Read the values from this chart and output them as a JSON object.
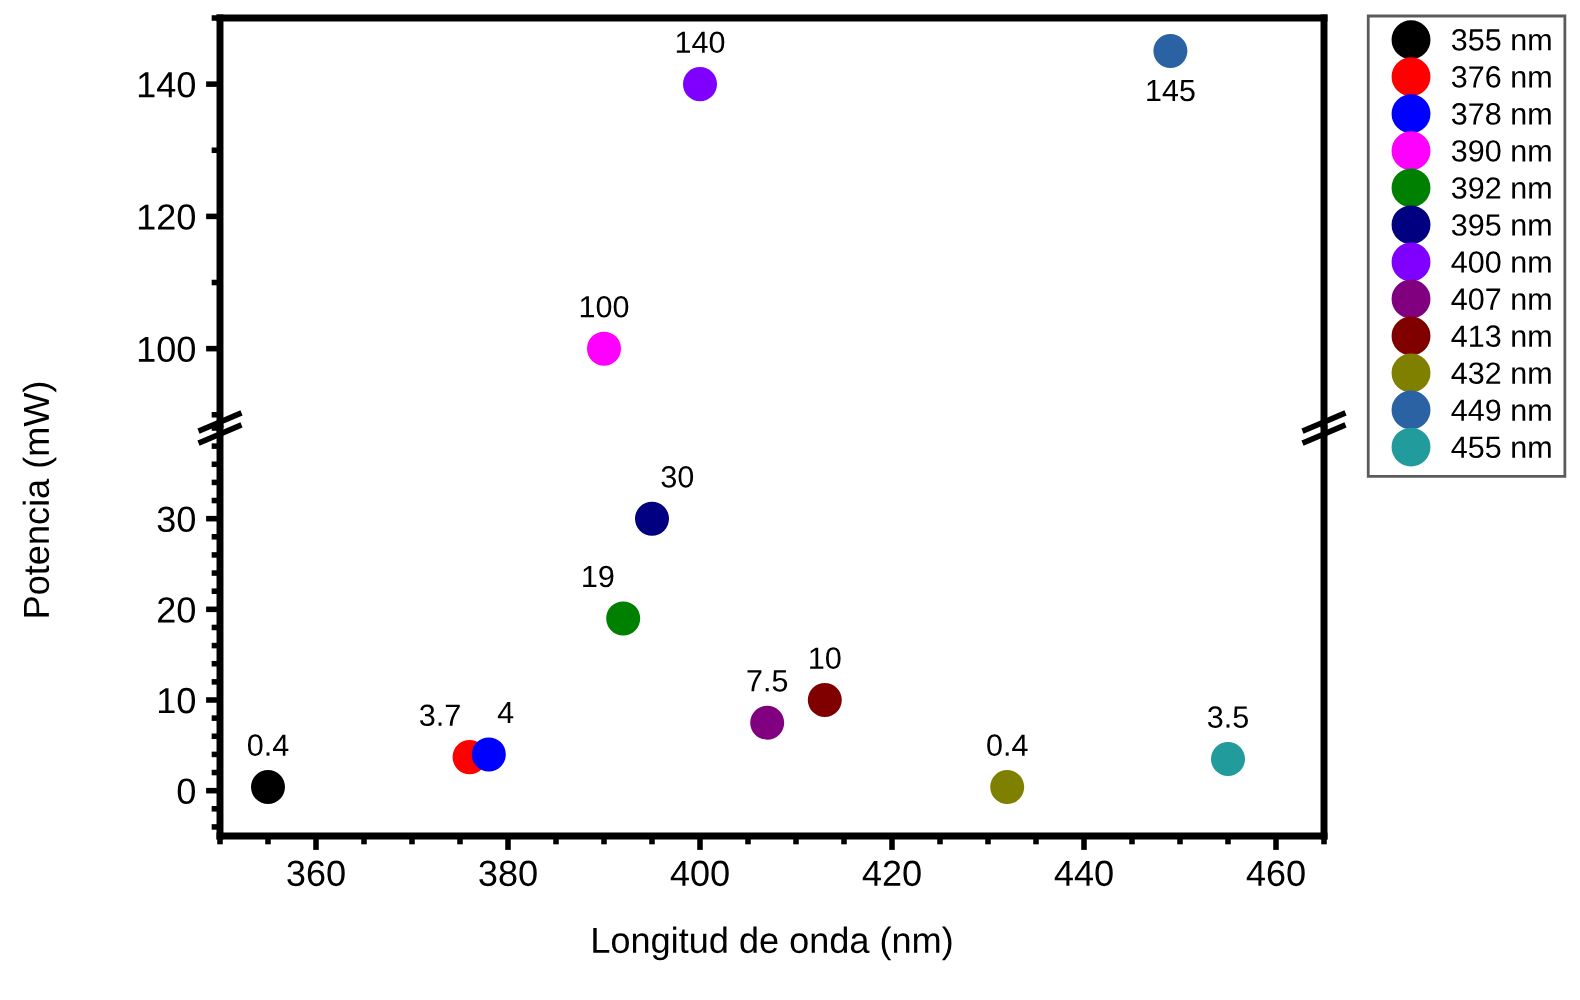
{
  "chart_data": [
    {
      "type": "scatter",
      "ylabel": "Potencia (mW)",
      "xlim": [
        350,
        465
      ],
      "ylim": [
        88,
        150
      ],
      "yticks": [
        100,
        120,
        140
      ],
      "tick_labels": "y",
      "marker": "circle",
      "data_labels": true,
      "legend": "right",
      "grid": false,
      "series": [
        {
          "name": "390 nm",
          "color": "#ff00ff",
          "x": [
            390
          ],
          "values": [
            100
          ]
        },
        {
          "name": "400 nm",
          "color": "#8000ff",
          "x": [
            400
          ],
          "values": [
            140
          ]
        },
        {
          "name": "449 nm",
          "color": "#2b62a3",
          "x": [
            449
          ],
          "values": [
            145
          ]
        }
      ]
    },
    {
      "type": "scatter",
      "xlabel": "Longitud de onda (nm)",
      "xlim": [
        350,
        465
      ],
      "xticks": [
        360,
        380,
        400,
        420,
        440,
        460
      ],
      "ylim": [
        -5,
        40
      ],
      "yticks": [
        0,
        10,
        20,
        30
      ],
      "marker": "circle",
      "data_labels": true,
      "legend": "right",
      "grid": false,
      "series": [
        {
          "name": "355 nm",
          "color": "#000000",
          "x": [
            355
          ],
          "values": [
            0.4
          ]
        },
        {
          "name": "376 nm",
          "color": "#ff0000",
          "x": [
            376
          ],
          "values": [
            3.7
          ]
        },
        {
          "name": "378 nm",
          "color": "#0000ff",
          "x": [
            378
          ],
          "values": [
            4
          ]
        },
        {
          "name": "392 nm",
          "color": "#008000",
          "x": [
            392
          ],
          "values": [
            19
          ]
        },
        {
          "name": "395 nm",
          "color": "#000080",
          "x": [
            395
          ],
          "values": [
            30
          ]
        },
        {
          "name": "407 nm",
          "color": "#800080",
          "x": [
            407
          ],
          "values": [
            7.5
          ]
        },
        {
          "name": "413 nm",
          "color": "#800000",
          "x": [
            413
          ],
          "values": [
            10
          ]
        },
        {
          "name": "432 nm",
          "color": "#808000",
          "x": [
            432
          ],
          "values": [
            0.4
          ]
        },
        {
          "name": "455 nm",
          "color": "#219b9b",
          "x": [
            455
          ],
          "values": [
            3.5
          ]
        }
      ]
    }
  ]
}
